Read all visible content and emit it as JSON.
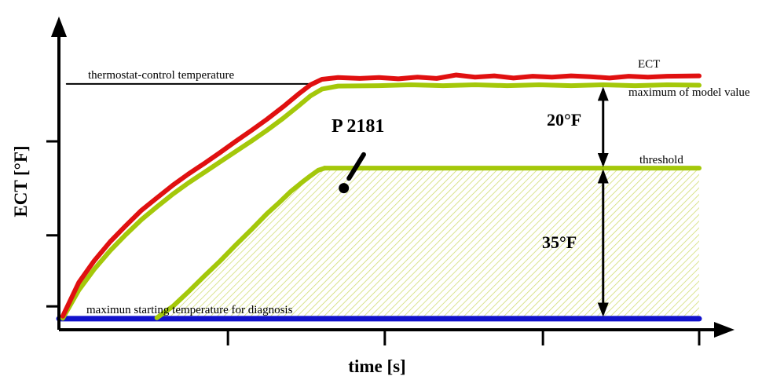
{
  "colors": {
    "red": "#e01010",
    "green": "#a4c80a",
    "blue": "#1212cc",
    "black": "#000000",
    "hatch": "#c2d145"
  },
  "labels": {
    "y_axis": "ECT [°F]",
    "x_axis": "time [s]",
    "thermostat": "thermostat-control temperature",
    "ect_curve": "ECT",
    "model_max": "maximum of model value",
    "threshold": "threshold",
    "diagnosis_baseline": "maximun starting temperature for diagnosis",
    "fault_code": "P 2181",
    "delta_upper": "20°F",
    "delta_lower": "35°F"
  },
  "chart_data": {
    "type": "line",
    "title": "",
    "xlabel": "time [s]",
    "ylabel": "ECT [°F]",
    "xlim": [
      0,
      100
    ],
    "ylim": [
      0,
      72
    ],
    "x_ticks": [
      26.4,
      50.9,
      75.6,
      100
    ],
    "y_ticks": [
      5.5,
      22.2,
      44.3
    ],
    "grid": false,
    "legend": "inline-right-labels",
    "series": [
      {
        "name": "thermostat-control temperature",
        "color": "black",
        "width": 2,
        "points": [
          [
            1.2,
            57.8
          ],
          [
            40,
            57.8
          ]
        ]
      },
      {
        "name": "maximun starting temperature for diagnosis",
        "color": "blue",
        "width": 7,
        "points": [
          [
            0,
            2.6
          ],
          [
            100,
            2.6
          ]
        ]
      },
      {
        "name": "threshold",
        "color": "green",
        "width": 6,
        "points": [
          [
            41.5,
            38
          ],
          [
            100,
            38
          ]
        ]
      },
      {
        "name": "diagnosis start ramp",
        "color": "green",
        "width": 6,
        "points": [
          [
            15.3,
            2.8
          ],
          [
            17.8,
            5.5
          ],
          [
            20.2,
            8.9
          ],
          [
            22.7,
            12.6
          ],
          [
            25.2,
            16.2
          ],
          [
            27.6,
            19.9
          ],
          [
            30.1,
            23.6
          ],
          [
            32.5,
            27.3
          ],
          [
            34.4,
            29.9
          ],
          [
            36.2,
            32.5
          ],
          [
            38,
            34.7
          ],
          [
            39.3,
            36.2
          ],
          [
            40.5,
            37.5
          ],
          [
            41.5,
            38
          ]
        ]
      },
      {
        "name": "maximum of model value",
        "color": "green",
        "width": 6,
        "points": [
          [
            0.6,
            2.7
          ],
          [
            3.1,
            9.3
          ],
          [
            5.5,
            14.2
          ],
          [
            8,
            18.6
          ],
          [
            10.4,
            22.3
          ],
          [
            12.9,
            25.9
          ],
          [
            15.3,
            28.9
          ],
          [
            17.8,
            31.9
          ],
          [
            20.2,
            34.5
          ],
          [
            22.7,
            37
          ],
          [
            25.2,
            39.5
          ],
          [
            27.6,
            41.9
          ],
          [
            30.1,
            44.4
          ],
          [
            32.5,
            46.9
          ],
          [
            35,
            49.7
          ],
          [
            37.4,
            52.6
          ],
          [
            39.3,
            55
          ],
          [
            41.1,
            56.6
          ],
          [
            43.6,
            57.3
          ],
          [
            50,
            57.4
          ],
          [
            55,
            57.6
          ],
          [
            60,
            57.4
          ],
          [
            65,
            57.6
          ],
          [
            70,
            57.4
          ],
          [
            75,
            57.6
          ],
          [
            80,
            57.4
          ],
          [
            85,
            57.6
          ],
          [
            90,
            57.4
          ],
          [
            95,
            57.6
          ],
          [
            100,
            57.5
          ]
        ]
      },
      {
        "name": "ECT",
        "color": "red",
        "width": 6,
        "points": [
          [
            0.6,
            3.2
          ],
          [
            3.1,
            11.1
          ],
          [
            5.5,
            16.2
          ],
          [
            8,
            20.7
          ],
          [
            10.4,
            24.4
          ],
          [
            12.9,
            28.1
          ],
          [
            15.3,
            31
          ],
          [
            17.8,
            34
          ],
          [
            20.2,
            36.6
          ],
          [
            22.7,
            39.1
          ],
          [
            25.2,
            41.7
          ],
          [
            27.6,
            44.3
          ],
          [
            30.1,
            46.9
          ],
          [
            32.5,
            49.5
          ],
          [
            35,
            52.4
          ],
          [
            37.4,
            55.4
          ],
          [
            39.3,
            57.6
          ],
          [
            41.1,
            58.9
          ],
          [
            43.6,
            59.3
          ],
          [
            47,
            59.1
          ],
          [
            50,
            59.3
          ],
          [
            53,
            59
          ],
          [
            56,
            59.4
          ],
          [
            59,
            59.1
          ],
          [
            62,
            59.9
          ],
          [
            65,
            59.4
          ],
          [
            68,
            59.7
          ],
          [
            71,
            59.2
          ],
          [
            74,
            59.6
          ],
          [
            77,
            59.4
          ],
          [
            80,
            59.7
          ],
          [
            83,
            59.5
          ],
          [
            86,
            59.2
          ],
          [
            89,
            59.6
          ],
          [
            92,
            59.4
          ],
          [
            95,
            59.6
          ],
          [
            100,
            59.7
          ]
        ]
      }
    ],
    "hatch_region": [
      [
        15.3,
        2.8
      ],
      [
        17.8,
        5.5
      ],
      [
        20.2,
        8.9
      ],
      [
        22.7,
        12.6
      ],
      [
        25.2,
        16.2
      ],
      [
        27.6,
        19.9
      ],
      [
        30.1,
        23.6
      ],
      [
        32.5,
        27.3
      ],
      [
        34.4,
        29.9
      ],
      [
        36.2,
        32.5
      ],
      [
        38,
        34.7
      ],
      [
        39.3,
        36.2
      ],
      [
        40.5,
        37.5
      ],
      [
        41.5,
        38
      ],
      [
        100,
        38
      ],
      [
        100,
        2.8
      ]
    ],
    "annotations": {
      "double_arrows": [
        {
          "name": "delta-20f",
          "label": "20°F",
          "x": 85,
          "y_from": 38.8,
          "y_to": 56.6
        },
        {
          "name": "delta-35f",
          "label": "35°F",
          "x": 85,
          "y_from": 3.6,
          "y_to": 37.2
        }
      ],
      "fault_pointer": {
        "label": "P 2181",
        "from": [
          47.6,
          41.2
        ],
        "to": [
          45.3,
          35.6
        ],
        "dot": [
          44.5,
          33.3
        ]
      }
    }
  }
}
